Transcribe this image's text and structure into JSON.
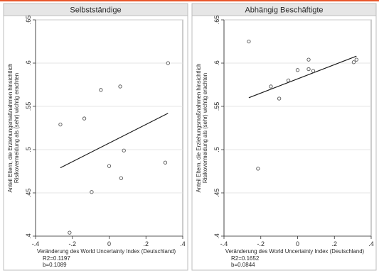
{
  "chart_data": [
    {
      "type": "scatter",
      "title": "Selbstständige",
      "xlabel": "Veränderung des World Uncertainty Index (Deutschland)",
      "ylabel": [
        "Anteil Eltern, die Erziehungsmaßnahmen hinsichtlich",
        "Risikovermeidung als (sehr) wichtig erachten"
      ],
      "xlim": [
        -0.4,
        0.4
      ],
      "ylim": [
        0.4,
        0.65
      ],
      "xticks": [
        -0.4,
        -0.2,
        0,
        0.2,
        0.4
      ],
      "xtick_labels": [
        "-.4",
        "-.2",
        "0",
        ".2",
        ".4"
      ],
      "yticks": [
        0.4,
        0.45,
        0.5,
        0.55,
        0.6,
        0.65
      ],
      "ytick_labels": [
        ".4",
        ".45",
        ".5",
        ".55",
        ".6",
        ".65"
      ],
      "grid": true,
      "points": [
        {
          "x": -0.265,
          "y": 0.529
        },
        {
          "x": -0.215,
          "y": 0.404
        },
        {
          "x": -0.135,
          "y": 0.536
        },
        {
          "x": -0.095,
          "y": 0.451
        },
        {
          "x": -0.045,
          "y": 0.569
        },
        {
          "x": 0.0,
          "y": 0.481
        },
        {
          "x": 0.06,
          "y": 0.573
        },
        {
          "x": 0.065,
          "y": 0.467
        },
        {
          "x": 0.08,
          "y": 0.499
        },
        {
          "x": 0.305,
          "y": 0.485
        },
        {
          "x": 0.32,
          "y": 0.6
        }
      ],
      "fit_line": {
        "x": [
          -0.265,
          0.32
        ],
        "y": [
          0.479,
          0.542
        ]
      },
      "stats": [
        "R2=0.1197",
        "b=0.1089"
      ]
    },
    {
      "type": "scatter",
      "title": "Abhängig Beschäftigte",
      "xlabel": "Veränderung des World Uncertainty Index (Deutschland)",
      "ylabel": [
        "Anteil Eltern, die Erziehungsmaßnahmen hinsichtlich",
        "Risikovermeidung als (sehr) wichtig erachten"
      ],
      "xlim": [
        -0.4,
        0.4
      ],
      "ylim": [
        0.4,
        0.65
      ],
      "xticks": [
        -0.4,
        -0.2,
        0,
        0.2,
        0.4
      ],
      "xtick_labels": [
        "-.4",
        "-.2",
        "0",
        ".2",
        ".4"
      ],
      "yticks": [
        0.4,
        0.45,
        0.5,
        0.55,
        0.6,
        0.65
      ],
      "ytick_labels": [
        ".4",
        ".45",
        ".5",
        ".55",
        ".6",
        ".65"
      ],
      "grid": true,
      "points": [
        {
          "x": -0.265,
          "y": 0.625
        },
        {
          "x": -0.215,
          "y": 0.478
        },
        {
          "x": -0.145,
          "y": 0.573
        },
        {
          "x": -0.1,
          "y": 0.559
        },
        {
          "x": -0.05,
          "y": 0.58
        },
        {
          "x": 0.0,
          "y": 0.592
        },
        {
          "x": 0.06,
          "y": 0.604
        },
        {
          "x": 0.06,
          "y": 0.593
        },
        {
          "x": 0.085,
          "y": 0.591
        },
        {
          "x": 0.305,
          "y": 0.601
        },
        {
          "x": 0.32,
          "y": 0.604
        }
      ],
      "fit_line": {
        "x": [
          -0.265,
          0.32
        ],
        "y": [
          0.56,
          0.608
        ]
      },
      "stats": [
        "R2=0.1652",
        "b=0.0844"
      ]
    }
  ],
  "colors": {
    "title_strip": "#e6e6e6",
    "grid": "#dcdcdc",
    "marker_edge": "#555555",
    "fit_line": "#1a1a1a",
    "accent_bar": "#e8562a"
  }
}
